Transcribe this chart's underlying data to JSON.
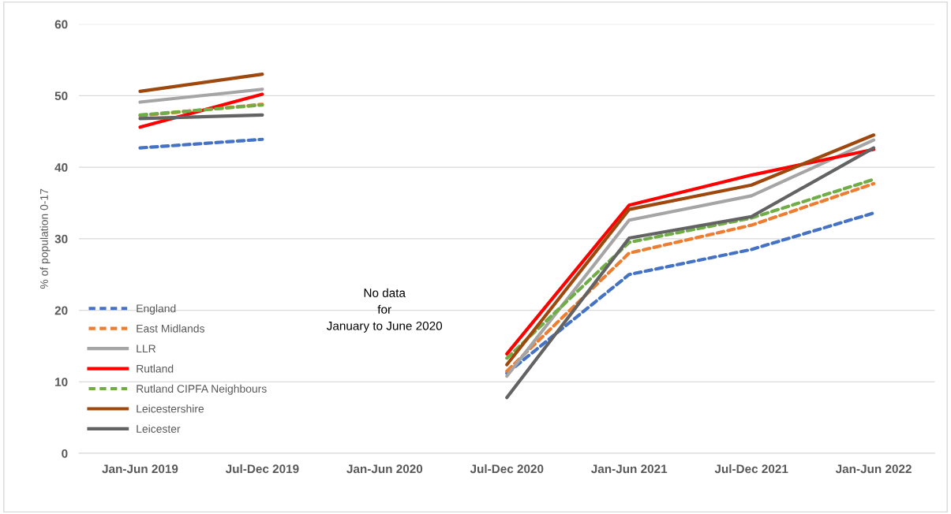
{
  "chart_data": {
    "type": "line",
    "ylabel": "% of population 0-17",
    "categories": [
      "Jan-Jun 2019",
      "Jul-Dec 2019",
      "Jan-Jun 2020",
      "Jul-Dec 2020",
      "Jan-Jun 2021",
      "Jul-Dec 2021",
      "Jan-Jun 2022"
    ],
    "series": [
      {
        "name": "England",
        "color": "#4472c4",
        "line_style": "dashed",
        "values": [
          42.7,
          43.9,
          null,
          11.2,
          25.0,
          28.5,
          33.6
        ]
      },
      {
        "name": "East Midlands",
        "color": "#ed7d31",
        "line_style": "dashed",
        "values": [
          47.2,
          48.8,
          null,
          11.5,
          28.0,
          31.9,
          37.7
        ]
      },
      {
        "name": "LLR",
        "color": "#a5a5a5",
        "line_style": "solid",
        "values": [
          49.1,
          50.9,
          null,
          10.8,
          32.6,
          36.0,
          43.8
        ]
      },
      {
        "name": "Rutland",
        "color": "#ff0000",
        "line_style": "solid",
        "values": [
          45.6,
          50.2,
          null,
          13.9,
          34.7,
          38.9,
          42.5
        ]
      },
      {
        "name": "Rutland CIPFA Neighbours",
        "color": "#70ad47",
        "line_style": "dashed",
        "values": [
          47.3,
          48.7,
          null,
          13.3,
          29.5,
          32.9,
          38.3
        ]
      },
      {
        "name": "Leicestershire",
        "color": "#9e480e",
        "line_style": "solid",
        "values": [
          50.6,
          53.0,
          null,
          12.4,
          34.1,
          37.5,
          44.5
        ]
      },
      {
        "name": "Leicester",
        "color": "#636363",
        "line_style": "solid",
        "values": [
          46.8,
          47.3,
          null,
          7.8,
          30.1,
          33.1,
          42.7
        ]
      }
    ],
    "ylim": [
      0,
      60
    ],
    "yticks": [
      0,
      10,
      20,
      30,
      40,
      50,
      60
    ],
    "grid": "y",
    "legend": "bottom left",
    "marker": "none",
    "annotations": [
      "No data\nfor\nJanuary to June 2020"
    ]
  }
}
